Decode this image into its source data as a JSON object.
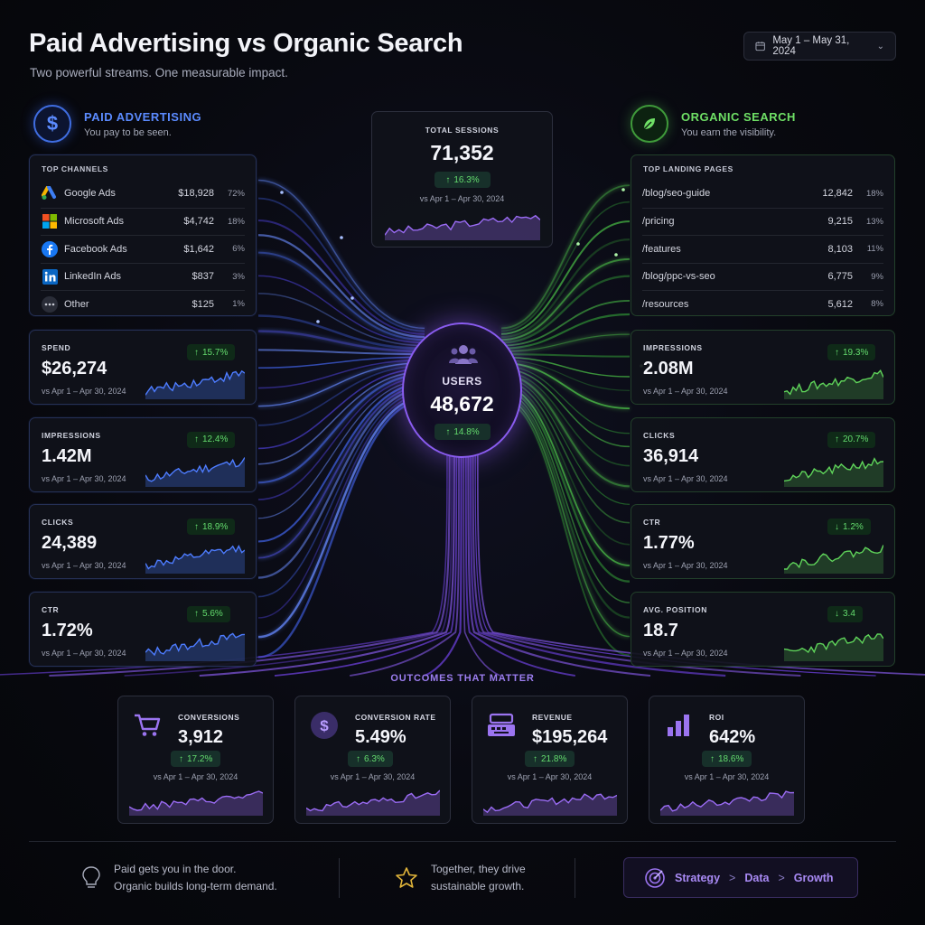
{
  "header": {
    "title": "Paid Advertising vs Organic Search",
    "subtitle": "Two powerful streams. One measurable impact.",
    "date_range": "May 1 – May 31, 2024"
  },
  "paid": {
    "title": "PAID ADVERTISING",
    "subtitle": "You pay to be seen.",
    "channels_title": "TOP CHANNELS",
    "channels": [
      {
        "name": "Google Ads",
        "value": "$18,928",
        "pct": "72%",
        "icon": "google-ads-icon"
      },
      {
        "name": "Microsoft Ads",
        "value": "$4,742",
        "pct": "18%",
        "icon": "microsoft-icon"
      },
      {
        "name": "Facebook Ads",
        "value": "$1,642",
        "pct": "6%",
        "icon": "facebook-icon"
      },
      {
        "name": "LinkedIn Ads",
        "value": "$837",
        "pct": "3%",
        "icon": "linkedin-icon"
      },
      {
        "name": "Other",
        "value": "$125",
        "pct": "1%",
        "icon": "more-icon"
      }
    ],
    "metrics": [
      {
        "label": "SPEND",
        "value": "$26,274",
        "delta": "15.7%",
        "dir": "up",
        "compare": "vs Apr 1 – Apr 30, 2024"
      },
      {
        "label": "IMPRESSIONS",
        "value": "1.42M",
        "delta": "12.4%",
        "dir": "up",
        "compare": "vs Apr 1 – Apr 30, 2024"
      },
      {
        "label": "CLICKS",
        "value": "24,389",
        "delta": "18.9%",
        "dir": "up",
        "compare": "vs Apr 1 – Apr 30, 2024"
      },
      {
        "label": "CTR",
        "value": "1.72%",
        "delta": "5.6%",
        "dir": "up",
        "compare": "vs Apr 1 – Apr 30, 2024"
      }
    ]
  },
  "organic": {
    "title": "ORGANIC SEARCH",
    "subtitle": "You earn the visibility.",
    "pages_title": "TOP LANDING PAGES",
    "pages": [
      {
        "name": "/blog/seo-guide",
        "value": "12,842",
        "pct": "18%"
      },
      {
        "name": "/pricing",
        "value": "9,215",
        "pct": "13%"
      },
      {
        "name": "/features",
        "value": "8,103",
        "pct": "11%"
      },
      {
        "name": "/blog/ppc-vs-seo",
        "value": "6,775",
        "pct": "9%"
      },
      {
        "name": "/resources",
        "value": "5,612",
        "pct": "8%"
      }
    ],
    "metrics": [
      {
        "label": "IMPRESSIONS",
        "value": "2.08M",
        "delta": "19.3%",
        "dir": "up",
        "compare": "vs Apr 1 – Apr 30, 2024"
      },
      {
        "label": "CLICKS",
        "value": "36,914",
        "delta": "20.7%",
        "dir": "up",
        "compare": "vs Apr 1 – Apr 30, 2024"
      },
      {
        "label": "CTR",
        "value": "1.77%",
        "delta": "1.2%",
        "dir": "down",
        "compare": "vs Apr 1 – Apr 30, 2024"
      },
      {
        "label": "AVG. POSITION",
        "value": "18.7",
        "delta": "3.4",
        "dir": "down",
        "compare": "vs Apr 1 – Apr 30, 2024"
      }
    ]
  },
  "sessions": {
    "label": "TOTAL SESSIONS",
    "value": "71,352",
    "delta": "16.3%",
    "compare": "vs Apr 1 – Apr 30, 2024"
  },
  "users": {
    "label": "USERS",
    "value": "48,672",
    "delta": "14.8%"
  },
  "outcomes": {
    "title": "OUTCOMES THAT MATTER",
    "items": [
      {
        "label": "CONVERSIONS",
        "value": "3,912",
        "delta": "17.2%",
        "compare": "vs Apr 1 – Apr 30, 2024",
        "icon": "cart-icon"
      },
      {
        "label": "CONVERSION RATE",
        "value": "5.49%",
        "delta": "6.3%",
        "compare": "vs Apr 1 – Apr 30, 2024",
        "icon": "dollar-icon"
      },
      {
        "label": "REVENUE",
        "value": "$195,264",
        "delta": "21.8%",
        "compare": "vs Apr 1 – Apr 30, 2024",
        "icon": "register-icon"
      },
      {
        "label": "ROI",
        "value": "642%",
        "delta": "18.6%",
        "compare": "vs Apr 1 – Apr 30, 2024",
        "icon": "bar-chart-icon"
      }
    ]
  },
  "footer": {
    "left_line1": "Paid gets you in the door.",
    "left_line2": "Organic builds long-term demand.",
    "mid_line1": "Together, they drive",
    "mid_line2": "sustainable growth.",
    "strategy": [
      "Strategy",
      "Data",
      "Growth"
    ],
    "sep": ">"
  },
  "colors": {
    "paid": "#5b8bff",
    "organic": "#6fe066",
    "accent": "#8a5cf0",
    "up": "#64dc6e"
  }
}
